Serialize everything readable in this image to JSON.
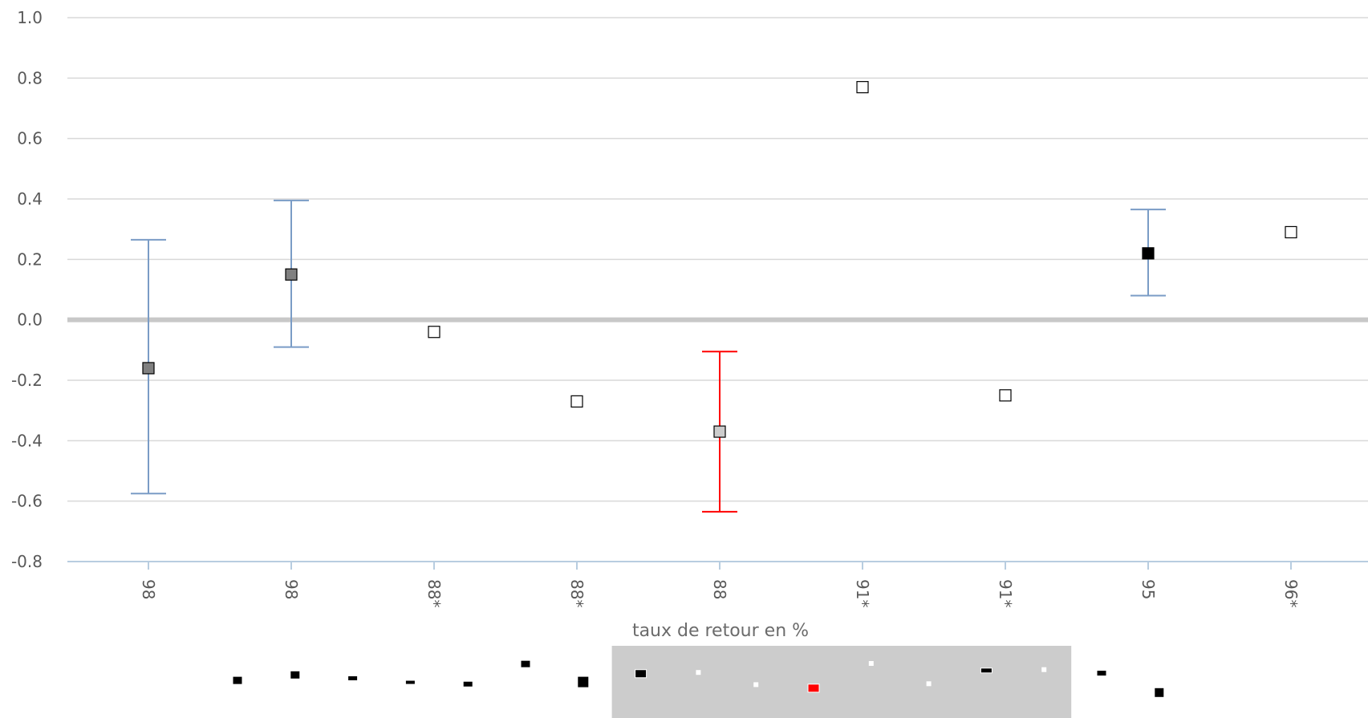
{
  "chart_data": {
    "type": "scatter",
    "xlabel": "taux de retour en %",
    "ylabel": "",
    "ylim": [
      -0.8,
      1.0
    ],
    "y_ticks": [
      "1.0",
      "0.8",
      "0.6",
      "0.4",
      "0.2",
      "0.0",
      "-0.2",
      "-0.4",
      "-0.6",
      "-0.8"
    ],
    "grid": true,
    "colors": {
      "errorbar": "#7a9cc6",
      "highlight": "#ff0000",
      "grid": "#d9d9d9",
      "zero_line": "#c8c8c8",
      "axis": "#b8cde0",
      "navigator_band": "#cccccc"
    },
    "points": [
      {
        "label": "98",
        "y": -0.16,
        "err_low": -0.575,
        "err_high": 0.265,
        "marker": "#808080",
        "highlight": false
      },
      {
        "label": "98",
        "y": 0.15,
        "err_low": -0.09,
        "err_high": 0.395,
        "marker": "#808080",
        "highlight": false
      },
      {
        "label": "88*",
        "y": -0.04,
        "marker": "#ffffff",
        "highlight": false
      },
      {
        "label": "88*",
        "y": -0.27,
        "marker": "#ffffff",
        "highlight": false
      },
      {
        "label": "88",
        "y": -0.37,
        "err_low": -0.635,
        "err_high": -0.105,
        "marker": "#cccccc",
        "highlight": true
      },
      {
        "label": "91*",
        "y": 0.77,
        "marker": "#ffffff",
        "highlight": false
      },
      {
        "label": "91*",
        "y": -0.25,
        "marker": "#ffffff",
        "highlight": false
      },
      {
        "label": "95",
        "y": 0.22,
        "err_low": 0.08,
        "err_high": 0.365,
        "marker": "#000000",
        "highlight": false
      },
      {
        "label": "96*",
        "y": 0.29,
        "marker": "#ffffff",
        "highlight": false
      }
    ],
    "navigator": {
      "window_start": 7,
      "window_end": 14,
      "points": [
        {
          "y": -0.16,
          "w": 12,
          "h": 10,
          "color": "#000000"
        },
        {
          "y": 0.15,
          "w": 12,
          "h": 10,
          "color": "#000000"
        },
        {
          "y": -0.04,
          "w": 12,
          "h": 6,
          "color": "#000000"
        },
        {
          "y": -0.27,
          "w": 12,
          "h": 5,
          "color": "#000000"
        },
        {
          "y": -0.37,
          "w": 12,
          "h": 7,
          "color": "#000000"
        },
        {
          "y": 0.77,
          "w": 12,
          "h": 9,
          "color": "#000000"
        },
        {
          "y": -0.25,
          "w": 14,
          "h": 14,
          "color": "#000000"
        },
        {
          "y": 0.22,
          "w": 14,
          "h": 10,
          "color": "#000000"
        },
        {
          "y": 0.29,
          "w": 6,
          "h": 6,
          "color": "#ffffff"
        },
        {
          "y": -0.4,
          "w": 6,
          "h": 6,
          "color": "#ffffff"
        },
        {
          "y": -0.6,
          "w": 14,
          "h": 10,
          "color": "#ff0000"
        },
        {
          "y": 0.8,
          "w": 6,
          "h": 6,
          "color": "#ffffff"
        },
        {
          "y": -0.35,
          "w": 6,
          "h": 6,
          "color": "#ffffff"
        },
        {
          "y": 0.4,
          "w": 14,
          "h": 6,
          "color": "#000000"
        },
        {
          "y": 0.45,
          "w": 6,
          "h": 6,
          "color": "#ffffff"
        },
        {
          "y": 0.25,
          "w": 12,
          "h": 7,
          "color": "#000000"
        },
        {
          "y": -0.85,
          "w": 12,
          "h": 12,
          "color": "#000000"
        }
      ]
    }
  }
}
